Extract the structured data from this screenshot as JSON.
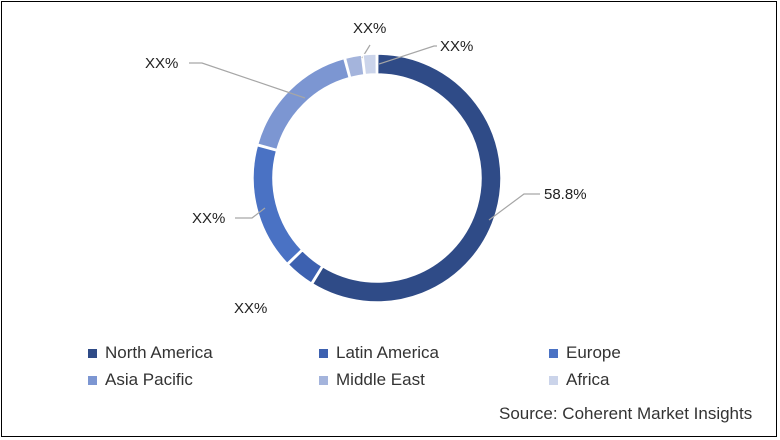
{
  "chart_data": {
    "type": "pie",
    "style": "donut",
    "slices": [
      {
        "category": "North America",
        "value": 58.8,
        "label": "58.8%",
        "color": "#2f4b87"
      },
      {
        "category": "Latin America",
        "value": 4.0,
        "label": "XX%",
        "color": "#3d61b0"
      },
      {
        "category": "Europe",
        "value": 16.5,
        "label": "XX%",
        "color": "#4a72c4"
      },
      {
        "category": "Asia Pacific",
        "value": 16.5,
        "label": "XX%",
        "color": "#7c96d2"
      },
      {
        "category": "Middle East",
        "value": 2.3,
        "label": "XX%",
        "color": "#a4b4dc"
      },
      {
        "category": "Africa",
        "value": 1.9,
        "label": "XX%",
        "color": "#cbd4ea"
      }
    ],
    "legend_position": "bottom",
    "source": "Source: Coherent Market Insights"
  }
}
